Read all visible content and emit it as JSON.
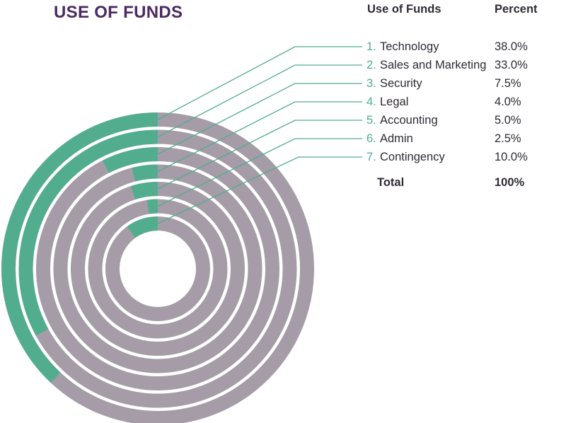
{
  "title": "USE OF FUNDS",
  "table": {
    "header_label": "Use of Funds",
    "header_value": "Percent",
    "rows": [
      {
        "num": "1.",
        "label": "Technology",
        "value": "38.0%"
      },
      {
        "num": "2.",
        "label": "Sales and Marketing",
        "value": "33.0%"
      },
      {
        "num": "3.",
        "label": "Security",
        "value": "7.5%"
      },
      {
        "num": "4.",
        "label": "Legal",
        "value": "4.0%"
      },
      {
        "num": "5.",
        "label": "Accounting",
        "value": "5.0%"
      },
      {
        "num": "6.",
        "label": "Admin",
        "value": "2.5%"
      },
      {
        "num": "7.",
        "label": "Contingency",
        "value": "10.0%"
      }
    ],
    "total_label": "Total",
    "total_value": "100%"
  },
  "colors": {
    "title": "#4b2a63",
    "text": "#2f2a33",
    "accent": "#52ad8e",
    "track": "#a59ca8"
  },
  "chart_data": {
    "type": "radial-bar",
    "categories": [
      "Technology",
      "Sales and Marketing",
      "Security",
      "Legal",
      "Accounting",
      "Admin",
      "Contingency"
    ],
    "values": [
      38.0,
      33.0,
      7.5,
      4.0,
      5.0,
      2.5,
      10.0
    ],
    "unit": "%",
    "max": 100,
    "total": 100
  }
}
